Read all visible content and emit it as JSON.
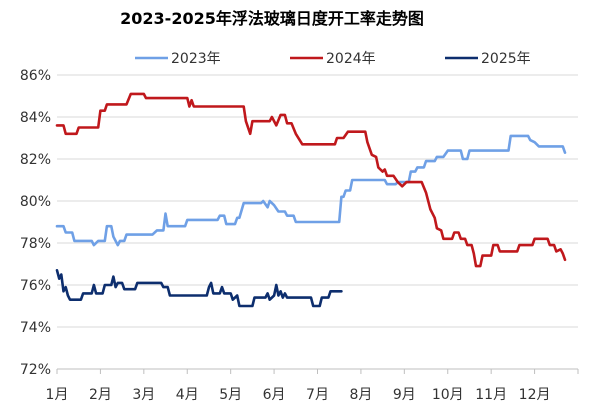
{
  "chart_data": {
    "type": "line",
    "title": "2023-2025年浮法玻璃日度开工率走势图",
    "xlabel": "",
    "ylabel": "",
    "ylim": [
      72,
      86
    ],
    "yticks": [
      "72%",
      "74%",
      "76%",
      "78%",
      "80%",
      "82%",
      "84%",
      "86%"
    ],
    "x_categories": [
      "1月",
      "2月",
      "3月",
      "4月",
      "5月",
      "6月",
      "7月",
      "8月",
      "9月",
      "10月",
      "11月",
      "12月"
    ],
    "grid": "horizontal",
    "legend_position": "top",
    "series": [
      {
        "name": "2023年",
        "color": "#6fa0e6",
        "points": [
          [
            1.0,
            78.8
          ],
          [
            1.15,
            78.8
          ],
          [
            1.2,
            78.5
          ],
          [
            1.35,
            78.5
          ],
          [
            1.4,
            78.1
          ],
          [
            1.8,
            78.1
          ],
          [
            1.85,
            77.9
          ],
          [
            1.95,
            78.1
          ],
          [
            2.1,
            78.1
          ],
          [
            2.15,
            78.8
          ],
          [
            2.25,
            78.8
          ],
          [
            2.3,
            78.3
          ],
          [
            2.4,
            77.9
          ],
          [
            2.45,
            78.1
          ],
          [
            2.55,
            78.1
          ],
          [
            2.6,
            78.4
          ],
          [
            3.2,
            78.4
          ],
          [
            3.3,
            78.6
          ],
          [
            3.45,
            78.6
          ],
          [
            3.5,
            79.4
          ],
          [
            3.55,
            78.8
          ],
          [
            3.95,
            78.8
          ],
          [
            4.0,
            79.1
          ],
          [
            4.7,
            79.1
          ],
          [
            4.75,
            79.3
          ],
          [
            4.85,
            79.3
          ],
          [
            4.9,
            78.9
          ],
          [
            5.1,
            78.9
          ],
          [
            5.15,
            79.2
          ],
          [
            5.2,
            79.2
          ],
          [
            5.3,
            79.9
          ],
          [
            5.7,
            79.9
          ],
          [
            5.75,
            80.0
          ],
          [
            5.85,
            79.7
          ],
          [
            5.9,
            80.0
          ],
          [
            6.0,
            79.8
          ],
          [
            6.1,
            79.5
          ],
          [
            6.25,
            79.5
          ],
          [
            6.3,
            79.3
          ],
          [
            6.45,
            79.3
          ],
          [
            6.5,
            79.0
          ],
          [
            7.5,
            79.0
          ],
          [
            7.55,
            80.2
          ],
          [
            7.6,
            80.2
          ],
          [
            7.65,
            80.5
          ],
          [
            7.75,
            80.5
          ],
          [
            7.8,
            81.0
          ],
          [
            8.55,
            81.0
          ],
          [
            8.6,
            80.8
          ],
          [
            8.8,
            80.8
          ],
          [
            8.85,
            80.9
          ],
          [
            9.1,
            80.9
          ],
          [
            9.15,
            81.4
          ],
          [
            9.25,
            81.4
          ],
          [
            9.3,
            81.6
          ],
          [
            9.45,
            81.6
          ],
          [
            9.5,
            81.9
          ],
          [
            9.7,
            81.9
          ],
          [
            9.75,
            82.1
          ],
          [
            9.9,
            82.1
          ],
          [
            10.0,
            82.4
          ],
          [
            10.3,
            82.4
          ],
          [
            10.35,
            82.0
          ],
          [
            10.45,
            82.0
          ],
          [
            10.5,
            82.4
          ],
          [
            11.4,
            82.4
          ],
          [
            11.45,
            83.1
          ],
          [
            11.85,
            83.1
          ],
          [
            11.9,
            82.9
          ],
          [
            12.0,
            82.8
          ],
          [
            12.1,
            82.6
          ],
          [
            12.65,
            82.6
          ],
          [
            12.7,
            82.3
          ]
        ]
      },
      {
        "name": "2024年",
        "color": "#c0181c",
        "points": [
          [
            1.0,
            83.6
          ],
          [
            1.15,
            83.6
          ],
          [
            1.2,
            83.2
          ],
          [
            1.45,
            83.2
          ],
          [
            1.5,
            83.5
          ],
          [
            1.95,
            83.5
          ],
          [
            2.0,
            84.3
          ],
          [
            2.1,
            84.3
          ],
          [
            2.15,
            84.6
          ],
          [
            2.6,
            84.6
          ],
          [
            2.7,
            85.1
          ],
          [
            3.0,
            85.1
          ],
          [
            3.05,
            84.9
          ],
          [
            4.0,
            84.9
          ],
          [
            4.05,
            84.5
          ],
          [
            4.1,
            84.8
          ],
          [
            4.15,
            84.5
          ],
          [
            5.3,
            84.5
          ],
          [
            5.35,
            83.8
          ],
          [
            5.45,
            83.2
          ],
          [
            5.5,
            83.8
          ],
          [
            5.9,
            83.8
          ],
          [
            5.95,
            84.0
          ],
          [
            6.05,
            83.6
          ],
          [
            6.15,
            84.1
          ],
          [
            6.25,
            84.1
          ],
          [
            6.3,
            83.7
          ],
          [
            6.4,
            83.7
          ],
          [
            6.5,
            83.2
          ],
          [
            6.65,
            82.7
          ],
          [
            7.4,
            82.7
          ],
          [
            7.45,
            83.0
          ],
          [
            7.6,
            83.0
          ],
          [
            7.7,
            83.3
          ],
          [
            8.1,
            83.3
          ],
          [
            8.15,
            82.8
          ],
          [
            8.25,
            82.2
          ],
          [
            8.35,
            82.1
          ],
          [
            8.4,
            81.6
          ],
          [
            8.5,
            81.4
          ],
          [
            8.55,
            81.5
          ],
          [
            8.6,
            81.2
          ],
          [
            8.75,
            81.2
          ],
          [
            8.85,
            80.9
          ],
          [
            8.95,
            80.7
          ],
          [
            9.05,
            80.9
          ],
          [
            9.4,
            80.9
          ],
          [
            9.5,
            80.4
          ],
          [
            9.6,
            79.6
          ],
          [
            9.7,
            79.2
          ],
          [
            9.75,
            78.7
          ],
          [
            9.85,
            78.6
          ],
          [
            9.9,
            78.2
          ],
          [
            10.1,
            78.2
          ],
          [
            10.15,
            78.5
          ],
          [
            10.25,
            78.5
          ],
          [
            10.3,
            78.2
          ],
          [
            10.4,
            78.2
          ],
          [
            10.45,
            77.9
          ],
          [
            10.55,
            77.9
          ],
          [
            10.6,
            77.5
          ],
          [
            10.65,
            76.9
          ],
          [
            10.75,
            76.9
          ],
          [
            10.8,
            77.4
          ],
          [
            11.0,
            77.4
          ],
          [
            11.05,
            77.9
          ],
          [
            11.15,
            77.9
          ],
          [
            11.2,
            77.6
          ],
          [
            11.6,
            77.6
          ],
          [
            11.65,
            77.9
          ],
          [
            11.95,
            77.9
          ],
          [
            12.0,
            78.2
          ],
          [
            12.3,
            78.2
          ],
          [
            12.35,
            77.9
          ],
          [
            12.45,
            77.9
          ],
          [
            12.5,
            77.6
          ],
          [
            12.6,
            77.7
          ],
          [
            12.65,
            77.5
          ],
          [
            12.7,
            77.2
          ]
        ]
      },
      {
        "name": "2025年",
        "color": "#0d2e6e",
        "points": [
          [
            1.0,
            76.7
          ],
          [
            1.05,
            76.3
          ],
          [
            1.1,
            76.5
          ],
          [
            1.15,
            75.7
          ],
          [
            1.2,
            75.9
          ],
          [
            1.25,
            75.5
          ],
          [
            1.3,
            75.3
          ],
          [
            1.55,
            75.3
          ],
          [
            1.6,
            75.6
          ],
          [
            1.8,
            75.6
          ],
          [
            1.85,
            76.0
          ],
          [
            1.9,
            75.6
          ],
          [
            2.05,
            75.6
          ],
          [
            2.1,
            76.0
          ],
          [
            2.25,
            76.0
          ],
          [
            2.3,
            76.4
          ],
          [
            2.35,
            75.9
          ],
          [
            2.4,
            76.1
          ],
          [
            2.5,
            76.1
          ],
          [
            2.55,
            75.8
          ],
          [
            2.8,
            75.8
          ],
          [
            2.85,
            76.1
          ],
          [
            3.4,
            76.1
          ],
          [
            3.45,
            75.9
          ],
          [
            3.55,
            75.9
          ],
          [
            3.6,
            75.5
          ],
          [
            4.45,
            75.5
          ],
          [
            4.5,
            75.9
          ],
          [
            4.55,
            76.1
          ],
          [
            4.6,
            75.6
          ],
          [
            4.75,
            75.6
          ],
          [
            4.8,
            75.9
          ],
          [
            4.85,
            75.6
          ],
          [
            5.0,
            75.6
          ],
          [
            5.05,
            75.3
          ],
          [
            5.15,
            75.5
          ],
          [
            5.2,
            75.0
          ],
          [
            5.5,
            75.0
          ],
          [
            5.55,
            75.4
          ],
          [
            5.8,
            75.4
          ],
          [
            5.85,
            75.6
          ],
          [
            5.9,
            75.3
          ],
          [
            6.0,
            75.5
          ],
          [
            6.05,
            76.0
          ],
          [
            6.1,
            75.5
          ],
          [
            6.15,
            75.7
          ],
          [
            6.2,
            75.4
          ],
          [
            6.25,
            75.6
          ],
          [
            6.3,
            75.4
          ],
          [
            6.85,
            75.4
          ],
          [
            6.9,
            75.0
          ],
          [
            7.05,
            75.0
          ],
          [
            7.1,
            75.4
          ],
          [
            7.25,
            75.4
          ],
          [
            7.3,
            75.7
          ],
          [
            7.55,
            75.7
          ]
        ]
      }
    ]
  }
}
